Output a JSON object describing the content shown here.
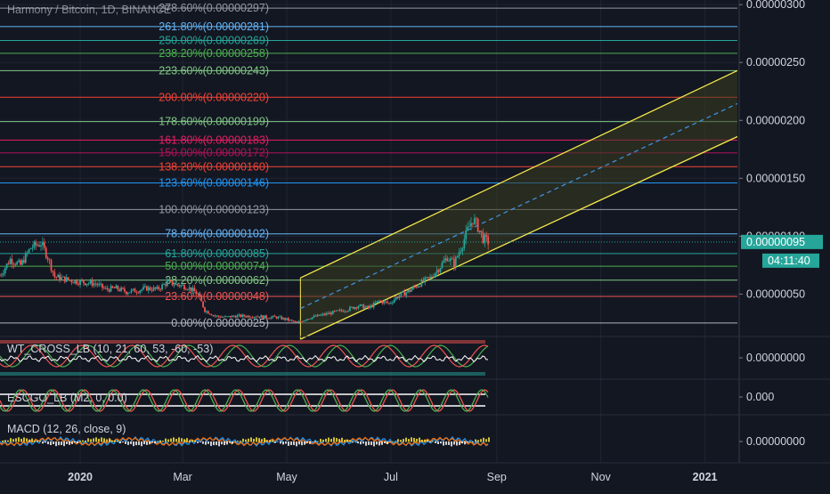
{
  "title": "Harmony / Bitcoin, 1D, BINANCE",
  "colors": {
    "background": "#131722",
    "grid": "#1f2433",
    "axis_text": "#d1d4dc",
    "up": "#26a69a",
    "down": "#ef5350",
    "channel": "#f5e94b",
    "midline": "#3d8fd9",
    "last_price_bg": "#26a69a",
    "fib_zone_fill": "#3a3d1f"
  },
  "chart_data": [
    {
      "type": "candlestick",
      "name": "price",
      "title": "Harmony / Bitcoin, 1D, BINANCE",
      "x_ticks": [
        "2020",
        "Mar",
        "May",
        "Jul",
        "Sep",
        "Nov",
        "2021"
      ],
      "x_tick_dates": [
        "2020-01-01",
        "2020-03-01",
        "2020-05-01",
        "2020-07-01",
        "2020-09-01",
        "2020-11-01",
        "2021-01-01"
      ],
      "x_range": [
        "2019-11-15",
        "2021-01-20"
      ],
      "y_range": [
        1.8e-07,
        3.04e-06
      ],
      "y_ticks": [
        "0.00000050",
        "0.00000100",
        "0.00000150",
        "0.00000200",
        "0.00000250",
        "0.00000300"
      ],
      "last_price": "0.00000095",
      "countdown": "04:11:40",
      "fib_levels": [
        {
          "label": "0.00%(0.00000025)",
          "value": 2.5e-07,
          "color": "#b2b5be"
        },
        {
          "label": "23.60%(0.00000048)",
          "value": 4.8e-07,
          "color": "#ef5350"
        },
        {
          "label": "38.20%(0.00000062)",
          "value": 6.2e-07,
          "color": "#81c784"
        },
        {
          "label": "50.00%(0.00000074)",
          "value": 7.4e-07,
          "color": "#4caf50"
        },
        {
          "label": "61.80%(0.00000085)",
          "value": 8.5e-07,
          "color": "#26a69a"
        },
        {
          "label": "78.60%(0.00000102)",
          "value": 1.02e-06,
          "color": "#64b5f6"
        },
        {
          "label": "100.00%(0.00000123)",
          "value": 1.23e-06,
          "color": "#9598a1"
        },
        {
          "label": "123.60%(0.00000146)",
          "value": 1.46e-06,
          "color": "#2196f3"
        },
        {
          "label": "138.20%(0.00000160)",
          "value": 1.6e-06,
          "color": "#f44336"
        },
        {
          "label": "150.00%(0.00000172)",
          "value": 1.72e-06,
          "color": "#ad1457"
        },
        {
          "label": "161.80%(0.00000183)",
          "value": 1.83e-06,
          "color": "#e91e63"
        },
        {
          "label": "178.60%(0.00000199)",
          "value": 1.99e-06,
          "color": "#81c784"
        },
        {
          "label": "200.00%(0.00000220)",
          "value": 2.2e-06,
          "color": "#f44336"
        },
        {
          "label": "223.60%(0.00000243)",
          "value": 2.43e-06,
          "color": "#81c784"
        },
        {
          "label": "238.20%(0.00000258)",
          "value": 2.58e-06,
          "color": "#4caf50"
        },
        {
          "label": "250.00%(0.00000269)",
          "value": 2.69e-06,
          "color": "#26a69a"
        },
        {
          "label": "261.80%(0.00000281)",
          "value": 2.81e-06,
          "color": "#64b5f6"
        },
        {
          "label": "278.60%(0.00000297)",
          "value": 2.97e-06,
          "color": "#9598a1"
        }
      ],
      "channel": {
        "upper": [
          [
            "2020-05-09",
            6.4e-07
          ],
          [
            "2021-01-20",
            2.43e-06
          ]
        ],
        "lower": [
          [
            "2020-05-09",
            1.1e-07
          ],
          [
            "2021-01-20",
            1.86e-06
          ]
        ],
        "middle_dashed": [
          [
            "2020-05-09",
            3.75e-07
          ],
          [
            "2021-01-20",
            2.145e-06
          ]
        ]
      },
      "candles_close": [
        [
          "2019-11-15",
          6.6e-07
        ],
        [
          "2019-11-21",
          8e-07
        ],
        [
          "2019-11-27",
          7.5e-07
        ],
        [
          "2019-12-03",
          9e-07
        ],
        [
          "2019-12-09",
          9.4e-07
        ],
        [
          "2019-12-13",
          8.2e-07
        ],
        [
          "2019-12-17",
          6.5e-07
        ],
        [
          "2019-12-23",
          6.3e-07
        ],
        [
          "2019-12-29",
          6.1e-07
        ],
        [
          "2020-01-04",
          6e-07
        ],
        [
          "2020-01-10",
          5.9e-07
        ],
        [
          "2020-01-16",
          5.4e-07
        ],
        [
          "2020-01-22",
          5.5e-07
        ],
        [
          "2020-01-28",
          5.2e-07
        ],
        [
          "2020-02-03",
          5.3e-07
        ],
        [
          "2020-02-09",
          5.5e-07
        ],
        [
          "2020-02-15",
          5.4e-07
        ],
        [
          "2020-02-21",
          6e-07
        ],
        [
          "2020-02-27",
          5.8e-07
        ],
        [
          "2020-03-04",
          5.6e-07
        ],
        [
          "2020-03-10",
          5e-07
        ],
        [
          "2020-03-14",
          3.6e-07
        ],
        [
          "2020-03-20",
          3.1e-07
        ],
        [
          "2020-03-26",
          3e-07
        ],
        [
          "2020-04-01",
          3.1e-07
        ],
        [
          "2020-04-07",
          3.1e-07
        ],
        [
          "2020-04-13",
          3.1e-07
        ],
        [
          "2020-04-19",
          3e-07
        ],
        [
          "2020-04-25",
          3e-07
        ],
        [
          "2020-05-01",
          2.8e-07
        ],
        [
          "2020-05-07",
          2.5e-07
        ],
        [
          "2020-05-13",
          2.9e-07
        ],
        [
          "2020-05-19",
          3.1e-07
        ],
        [
          "2020-05-25",
          3.3e-07
        ],
        [
          "2020-05-31",
          3.5e-07
        ],
        [
          "2020-06-06",
          3.7e-07
        ],
        [
          "2020-06-12",
          4e-07
        ],
        [
          "2020-06-18",
          3.8e-07
        ],
        [
          "2020-06-24",
          4.4e-07
        ],
        [
          "2020-06-30",
          4.2e-07
        ],
        [
          "2020-07-06",
          4.9e-07
        ],
        [
          "2020-07-12",
          5.3e-07
        ],
        [
          "2020-07-18",
          5.9e-07
        ],
        [
          "2020-07-24",
          6.4e-07
        ],
        [
          "2020-07-30",
          7.4e-07
        ],
        [
          "2020-08-03",
          8.2e-07
        ],
        [
          "2020-08-07",
          7.6e-07
        ],
        [
          "2020-08-11",
          9e-07
        ],
        [
          "2020-08-15",
          1.05e-06
        ],
        [
          "2020-08-18",
          1.15e-06
        ],
        [
          "2020-08-21",
          1.08e-06
        ],
        [
          "2020-08-24",
          9.8e-07
        ],
        [
          "2020-08-27",
          9.5e-07
        ]
      ]
    },
    {
      "type": "line",
      "name": "WT_CROSS_LB",
      "title": "WT_CROSS_LB (10, 21, 60, 53, -60, -53)",
      "y_ticks": [
        "0.00000000"
      ],
      "note": "oscillator"
    },
    {
      "type": "line",
      "name": "ESCGO_LB",
      "title": "ESCGO_LB (M2, 0, 0.0)",
      "y_ticks": [
        "0.000"
      ]
    },
    {
      "type": "line",
      "name": "MACD",
      "title": "MACD (12, 26, close, 9)",
      "y_ticks": [
        "0.00000000"
      ]
    }
  ]
}
